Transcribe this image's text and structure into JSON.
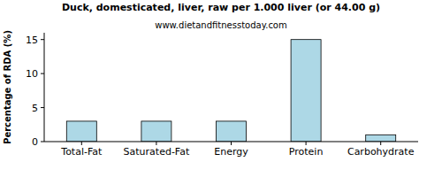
{
  "chart_data": {
    "type": "bar",
    "title": "Duck, domesticated, liver, raw per 1.000 liver (or 44.00 g)",
    "subtitle": "www.dietandfitnesstoday.com",
    "y_label": "Percentage of RDA (%)",
    "categories": [
      "Total-Fat",
      "Saturated-Fat",
      "Energy",
      "Protein",
      "Carbohydrate"
    ],
    "values": [
      3,
      3,
      3,
      15,
      1
    ],
    "color": "#add8e6",
    "ylim": [
      0,
      16
    ],
    "yticks": [
      0,
      5,
      10,
      15
    ],
    "grid": false
  }
}
